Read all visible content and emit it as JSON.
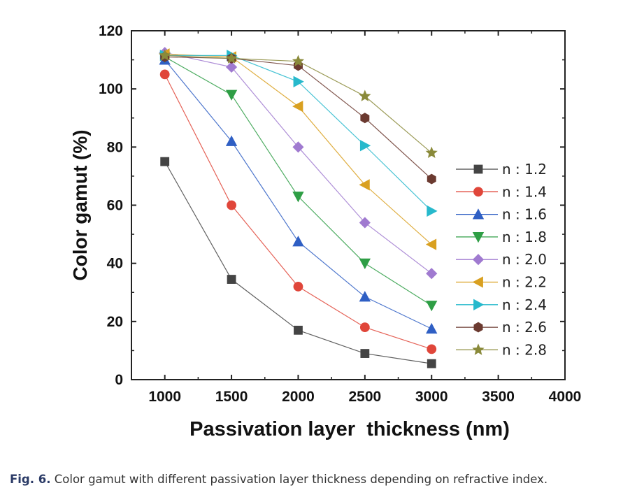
{
  "chart_data": {
    "type": "line",
    "title": "",
    "xlabel": "Passivation layer  thickness (nm)",
    "ylabel": "Color gamut (%)",
    "xlim": [
      750,
      4000
    ],
    "ylim": [
      0,
      120
    ],
    "xticks": [
      1000,
      1500,
      2000,
      2500,
      3000,
      3500,
      4000
    ],
    "yticks": [
      0,
      20,
      40,
      60,
      80,
      100,
      120
    ],
    "x": [
      1000,
      1500,
      2000,
      2500,
      3000
    ],
    "legend_position": "right",
    "grid": false,
    "series": [
      {
        "name": "n : 1.2",
        "marker": "square",
        "color": "#444444",
        "values": [
          75,
          34.5,
          17,
          9,
          5.5
        ]
      },
      {
        "name": "n : 1.4",
        "marker": "circle",
        "color": "#e0463a",
        "values": [
          105,
          60,
          32,
          18,
          10.5
        ]
      },
      {
        "name": "n : 1.6",
        "marker": "triangle-up",
        "color": "#2f5fc4",
        "values": [
          110,
          82,
          47.5,
          28.5,
          17.5
        ]
      },
      {
        "name": "n : 1.8",
        "marker": "triangle-down",
        "color": "#2e9e45",
        "values": [
          111,
          98,
          63,
          40,
          25.5
        ]
      },
      {
        "name": "n : 2.0",
        "marker": "diamond",
        "color": "#a07ad0",
        "values": [
          112.5,
          107.5,
          80,
          54,
          36.5
        ]
      },
      {
        "name": "n : 2.2",
        "marker": "triangle-left",
        "color": "#d9a020",
        "values": [
          112,
          111,
          94,
          67,
          46.5
        ]
      },
      {
        "name": "n : 2.4",
        "marker": "triangle-right",
        "color": "#27b9cc",
        "values": [
          111.5,
          111.5,
          102.5,
          80.5,
          58
        ]
      },
      {
        "name": "n : 2.6",
        "marker": "hexagon",
        "color": "#6b3a30",
        "values": [
          111,
          110.5,
          108,
          90,
          69
        ]
      },
      {
        "name": "n : 2.8",
        "marker": "star",
        "color": "#8a8a3a",
        "values": [
          111.5,
          110.5,
          109.5,
          97.5,
          78
        ]
      }
    ]
  },
  "caption": {
    "label": "Fig. 6.",
    "text": " Color gamut with different passivation layer thickness depending on refractive index."
  }
}
